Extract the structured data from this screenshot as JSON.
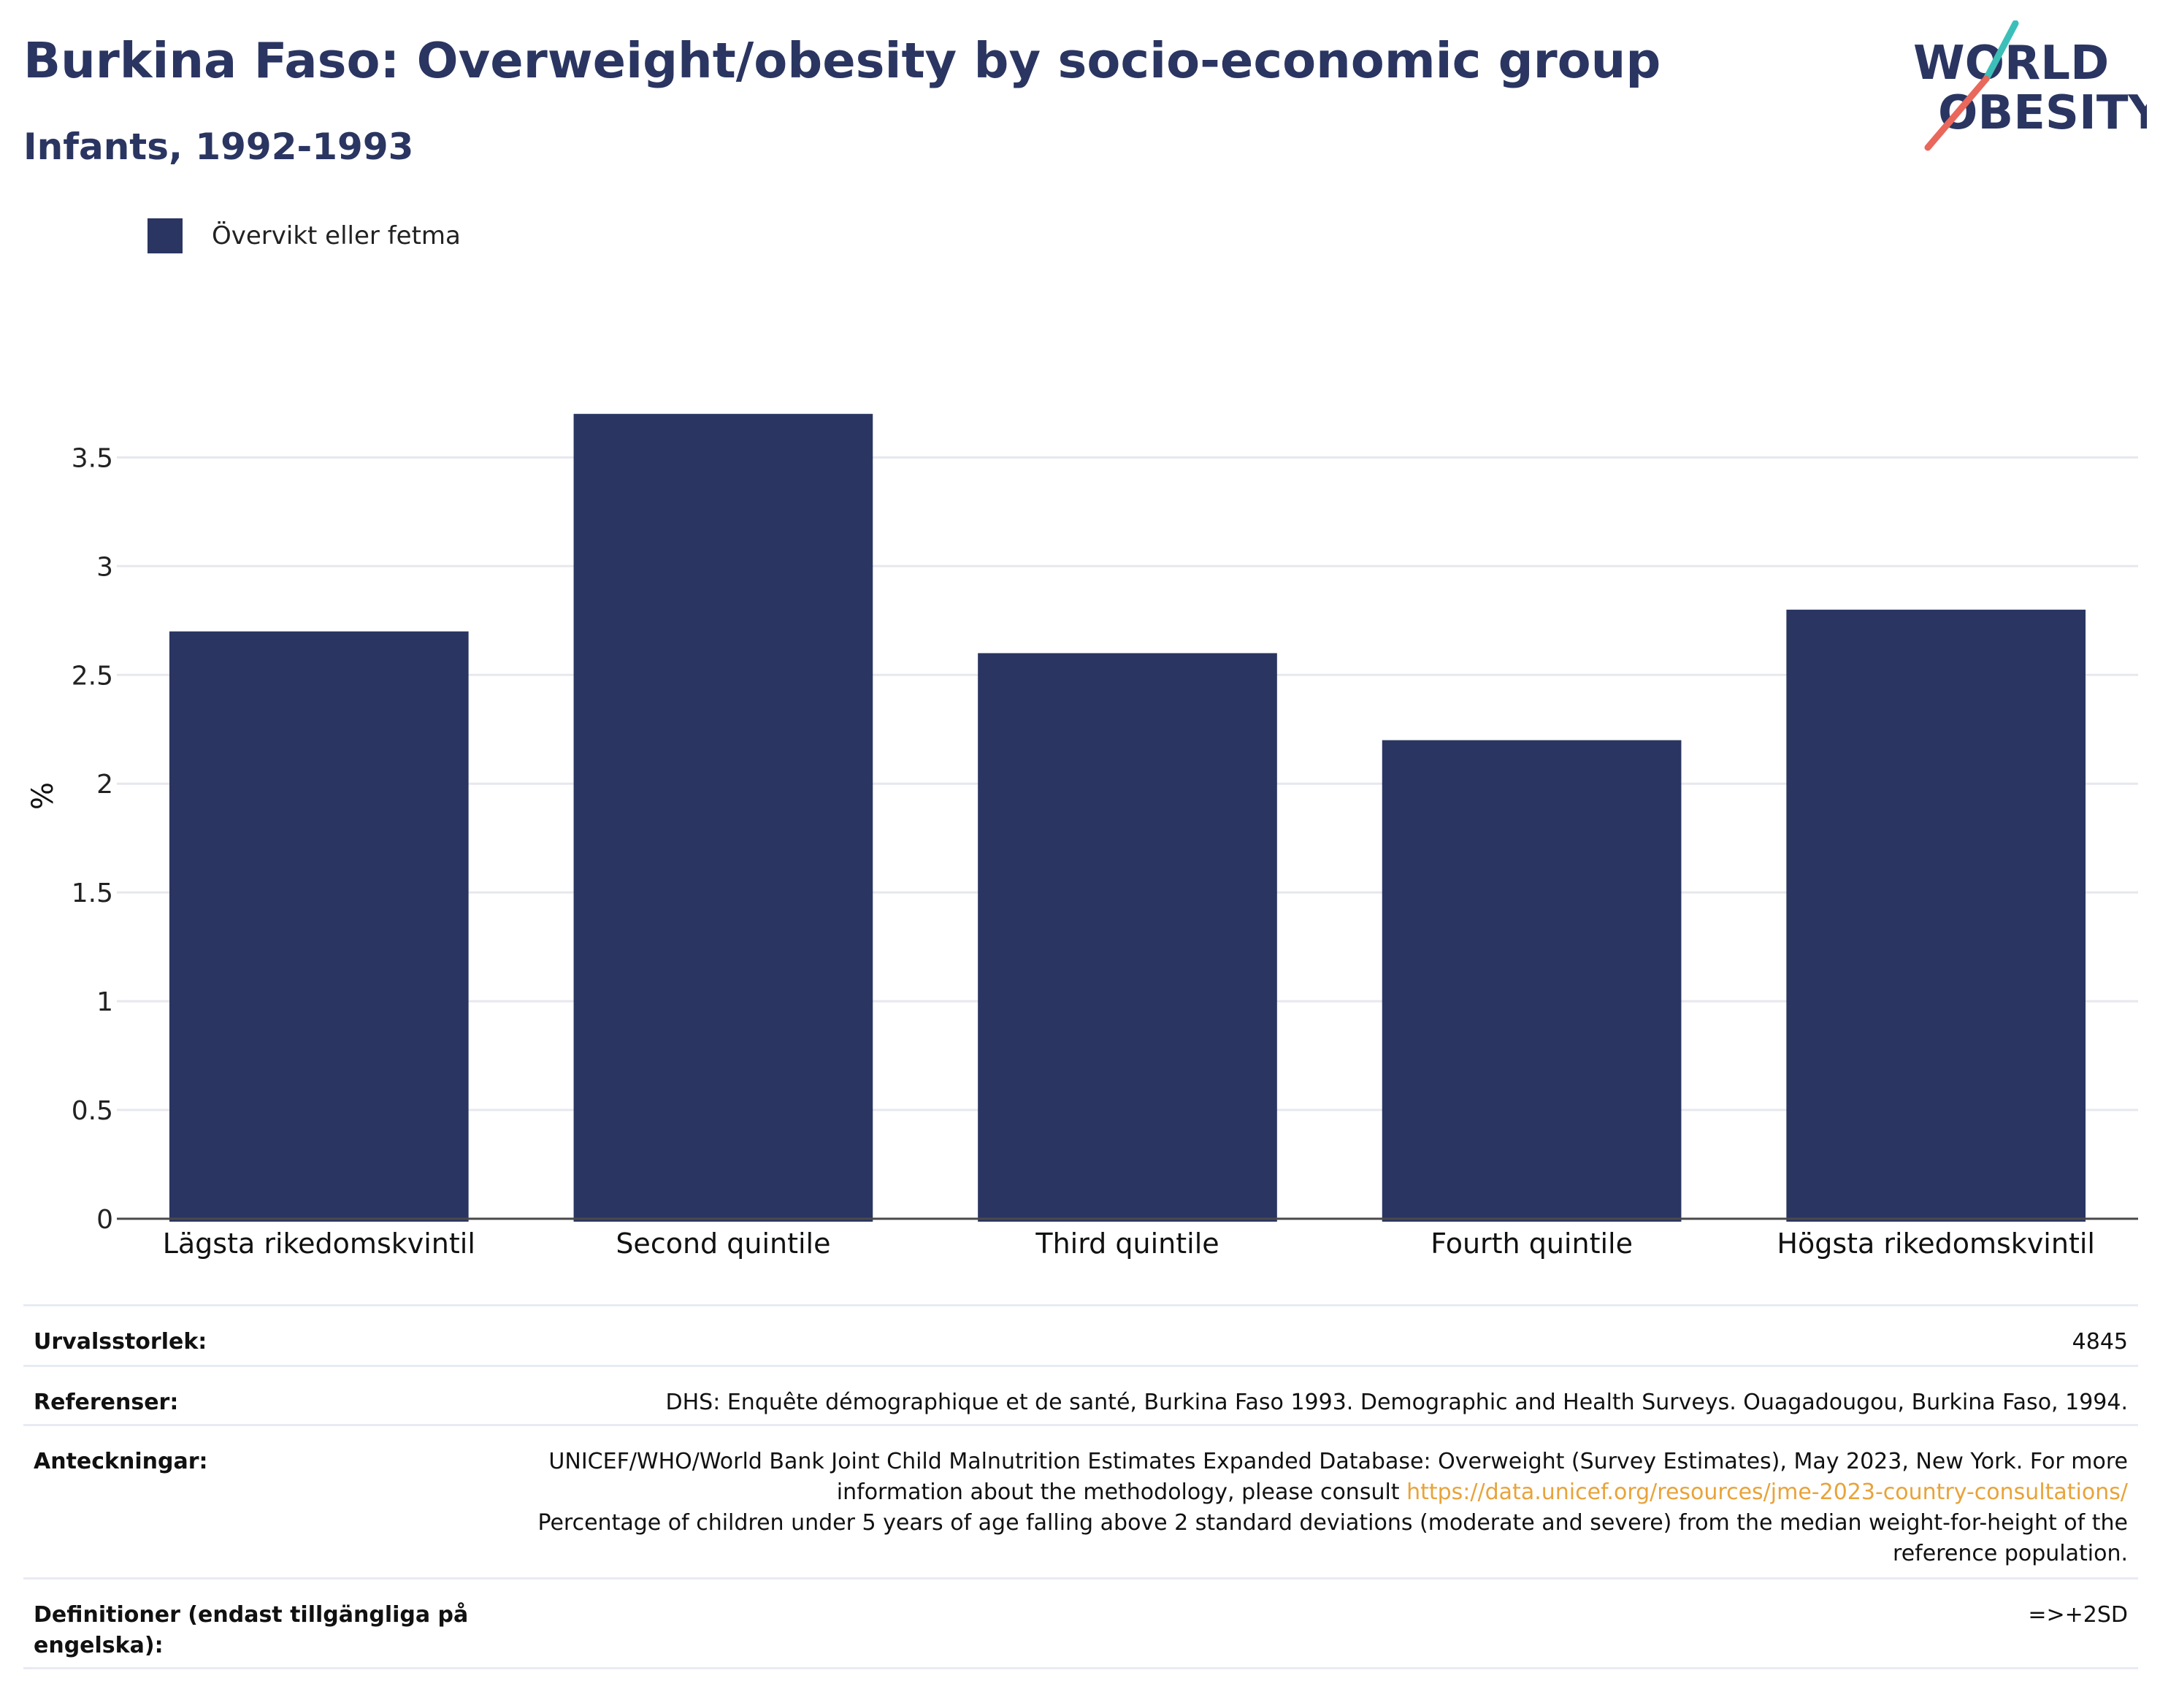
{
  "header": {
    "title": "Burkina Faso: Overweight/obesity by socio-economic group",
    "subtitle": "Infants, 1992-1993"
  },
  "logo": {
    "line1": "WORLD",
    "line2": "OBESITY",
    "accent_teal": "#3cbfb8",
    "accent_coral": "#e9675b",
    "text_color": "#2a3561"
  },
  "legend": {
    "label": "Övervikt eller fetma",
    "color": "#2a3561"
  },
  "chart_data": {
    "type": "bar",
    "title": "Burkina Faso: Overweight/obesity by socio-economic group",
    "subtitle": "Infants, 1992-1993",
    "xlabel": "",
    "ylabel": "%",
    "categories": [
      "Lägsta rikedomskvintil",
      "Second quintile",
      "Third quintile",
      "Fourth quintile",
      "Högsta rikedomskvintil"
    ],
    "series": [
      {
        "name": "Övervikt eller fetma",
        "values": [
          2.7,
          3.7,
          2.6,
          2.2,
          2.8
        ],
        "color": "#2a3561"
      }
    ],
    "yticks": [
      {
        "value": 0,
        "label": "0"
      },
      {
        "value": 0.5,
        "label": "0.5"
      },
      {
        "value": 1,
        "label": "1"
      },
      {
        "value": 1.5,
        "label": "1.5"
      },
      {
        "value": 2,
        "label": "2"
      },
      {
        "value": 2.5,
        "label": "2.5"
      },
      {
        "value": 3,
        "label": "3"
      },
      {
        "value": 3.5,
        "label": "3.5"
      }
    ],
    "ylim": [
      0,
      4
    ],
    "grid": true,
    "legend_position": "top-left"
  },
  "info": {
    "sample_size": {
      "label": "Urvalsstorlek:",
      "value": "4845"
    },
    "references": {
      "label": "Referenser:",
      "value": "DHS: Enquête démographique et de santé, Burkina Faso 1993. Demographic and Health Surveys. Ouagadougou, Burkina Faso, 1994."
    },
    "notes": {
      "label": "Anteckningar:",
      "text1": "UNICEF/WHO/World Bank Joint Child Malnutrition Estimates Expanded Database: Overweight (Survey Estimates), May 2023, New York. For more information about the methodology, please consult ",
      "link": "https://data.unicef.org/resources/jme-2023-country-consultations/",
      "text2": "Percentage of children under 5 years of age falling above 2 standard deviations (moderate and severe) from the median weight-for-height of the reference population."
    },
    "definitions": {
      "label": "Definitioner (endast tillgängliga på engelska):",
      "value": "=>+2SD"
    }
  }
}
